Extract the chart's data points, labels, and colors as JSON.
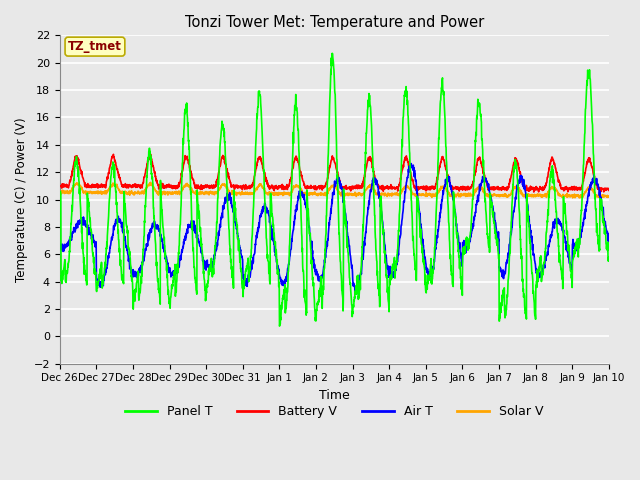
{
  "title": "Tonzi Tower Met: Temperature and Power",
  "xlabel": "Time",
  "ylabel": "Temperature (C) / Power (V)",
  "ylim": [
    -2,
    22
  ],
  "yticks": [
    -2,
    0,
    2,
    4,
    6,
    8,
    10,
    12,
    14,
    16,
    18,
    20,
    22
  ],
  "legend_labels": [
    "Panel T",
    "Battery V",
    "Air T",
    "Solar V"
  ],
  "legend_colors": [
    "#00FF00",
    "#FF0000",
    "#0000FF",
    "#FFA500"
  ],
  "annotation_text": "TZ_tmet",
  "annotation_color": "#8B0000",
  "annotation_bg": "#FFFFC0",
  "bg_color": "#E8E8E8",
  "plot_bg": "#E8E8E8",
  "grid_color": "#FFFFFF",
  "xtick_labels": [
    "Dec 26",
    "Dec 27",
    "Dec 28",
    "Dec 29",
    "Dec 30",
    "Dec 31",
    "Jan 1",
    "Jan 2",
    "Jan 3",
    "Jan 4",
    "Jan 5",
    "Jan 6",
    "Jan 7",
    "Jan 8",
    "Jan 9",
    "Jan 10"
  ],
  "n_days": 15,
  "ppd": 144,
  "panel_peak_heights": [
    12.8,
    12.5,
    13.5,
    16.7,
    15.5,
    17.8,
    17.0,
    20.5,
    17.5,
    18.0,
    18.5,
    17.0,
    12.7,
    12.0,
    19.5,
    12.5
  ],
  "panel_night_depths": [
    3.5,
    3.2,
    2.2,
    2.5,
    3.5,
    3.5,
    0.8,
    1.5,
    1.8,
    3.8,
    3.0,
    5.8,
    1.0,
    3.8,
    5.5,
    6.0
  ],
  "air_peak_heights": [
    8.5,
    8.5,
    8.2,
    8.2,
    10.2,
    9.5,
    10.5,
    11.5,
    11.5,
    12.5,
    11.5,
    11.5,
    11.5,
    8.5,
    11.5,
    11.5
  ],
  "air_night_depths": [
    6.5,
    3.8,
    4.5,
    4.5,
    5.0,
    4.0,
    3.8,
    4.2,
    3.5,
    4.5,
    4.5,
    6.5,
    4.5,
    4.5,
    6.5,
    6.0
  ]
}
